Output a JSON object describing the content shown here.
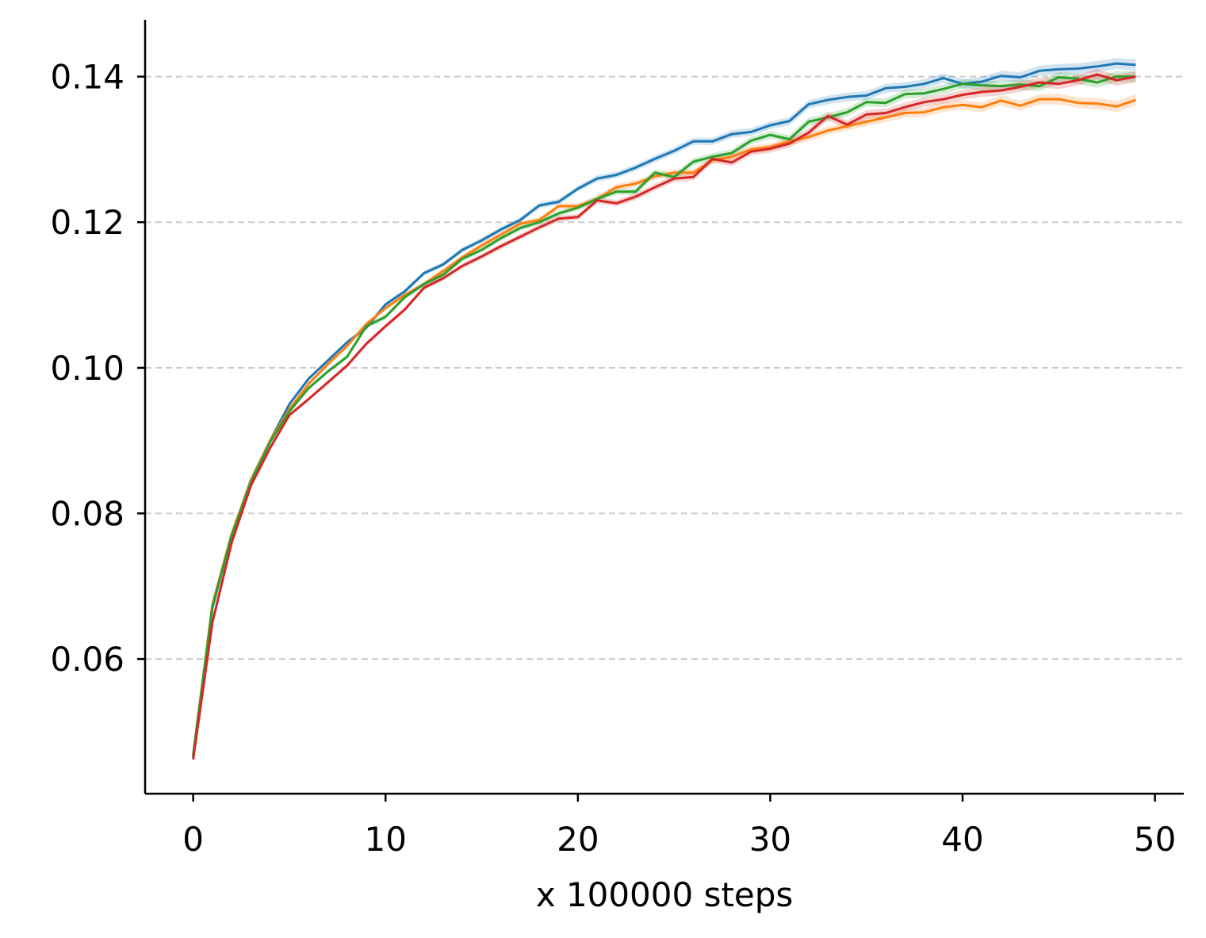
{
  "chart_data": {
    "type": "line",
    "title": "",
    "xlabel": "x 100000 steps",
    "ylabel": "",
    "xlim": [
      -2.5,
      51.5
    ],
    "ylim": [
      0.0415,
      0.1478
    ],
    "xticks": [
      0,
      10,
      20,
      30,
      40,
      50
    ],
    "xtick_labels": [
      "0",
      "10",
      "20",
      "30",
      "40",
      "50"
    ],
    "yticks": [
      0.06,
      0.08,
      0.1,
      0.12,
      0.14
    ],
    "ytick_labels": [
      "0.06",
      "0.08",
      "0.10",
      "0.12",
      "0.14"
    ],
    "grid": "horizontal-dashed",
    "legend": "none",
    "x": [
      0,
      1,
      2,
      3,
      4,
      5,
      6,
      7,
      8,
      9,
      10,
      11,
      12,
      13,
      14,
      15,
      16,
      17,
      18,
      19,
      20,
      21,
      22,
      23,
      24,
      25,
      26,
      27,
      28,
      29,
      30,
      31,
      32,
      33,
      34,
      35,
      36,
      37,
      38,
      39,
      40,
      41,
      42,
      43,
      44,
      45,
      46,
      47,
      48,
      49
    ],
    "band_width": 0.0006,
    "series": [
      {
        "color": "#1f77b4",
        "values": [
          0.0466,
          0.067,
          0.077,
          0.0846,
          0.09,
          0.095,
          0.0985,
          0.101,
          0.1035,
          0.1055,
          0.1087,
          0.1105,
          0.113,
          0.1142,
          0.1162,
          0.1175,
          0.119,
          0.1203,
          0.1223,
          0.1228,
          0.1246,
          0.126,
          0.1265,
          0.1275,
          0.1287,
          0.1298,
          0.1311,
          0.1311,
          0.1321,
          0.1324,
          0.1333,
          0.1339,
          0.1362,
          0.1368,
          0.1372,
          0.1374,
          0.1384,
          0.1386,
          0.139,
          0.1398,
          0.139,
          0.1393,
          0.1401,
          0.1399,
          0.1408,
          0.141,
          0.1411,
          0.1414,
          0.1418,
          0.1416
        ]
      },
      {
        "color": "#ff7f0e",
        "values": [
          0.0468,
          0.0675,
          0.0772,
          0.0845,
          0.09,
          0.0943,
          0.0978,
          0.1005,
          0.103,
          0.106,
          0.1082,
          0.11,
          0.1115,
          0.1133,
          0.1152,
          0.1168,
          0.1183,
          0.1198,
          0.1203,
          0.1222,
          0.1222,
          0.1232,
          0.1248,
          0.1253,
          0.1263,
          0.1268,
          0.1268,
          0.1285,
          0.129,
          0.13,
          0.1303,
          0.1311,
          0.1317,
          0.1326,
          0.1332,
          0.1338,
          0.1344,
          0.135,
          0.1351,
          0.1358,
          0.1361,
          0.1358,
          0.1367,
          0.136,
          0.1369,
          0.1369,
          0.1364,
          0.1363,
          0.1359,
          0.1368
        ]
      },
      {
        "color": "#2ca02c",
        "values": [
          0.0468,
          0.0672,
          0.077,
          0.0843,
          0.0898,
          0.094,
          0.0972,
          0.0995,
          0.1015,
          0.1057,
          0.107,
          0.1097,
          0.1115,
          0.1128,
          0.115,
          0.1162,
          0.1178,
          0.1192,
          0.12,
          0.1212,
          0.122,
          0.1232,
          0.1242,
          0.1242,
          0.1268,
          0.1262,
          0.1283,
          0.129,
          0.1295,
          0.1312,
          0.132,
          0.1314,
          0.1338,
          0.1344,
          0.1351,
          0.1365,
          0.1364,
          0.1376,
          0.1377,
          0.1383,
          0.139,
          0.1388,
          0.1387,
          0.1389,
          0.1387,
          0.1399,
          0.1397,
          0.1392,
          0.14,
          0.14
        ]
      },
      {
        "color": "#d62728",
        "values": [
          0.0462,
          0.065,
          0.076,
          0.0838,
          0.089,
          0.0935,
          0.0957,
          0.098,
          0.1003,
          0.1033,
          0.1057,
          0.108,
          0.111,
          0.1123,
          0.114,
          0.1153,
          0.1167,
          0.118,
          0.1193,
          0.1205,
          0.1207,
          0.123,
          0.1226,
          0.1235,
          0.1248,
          0.126,
          0.1262,
          0.1287,
          0.1282,
          0.1297,
          0.1301,
          0.1308,
          0.1323,
          0.1346,
          0.1334,
          0.1348,
          0.135,
          0.1358,
          0.1365,
          0.1369,
          0.1375,
          0.1379,
          0.1381,
          0.1386,
          0.1392,
          0.139,
          0.1395,
          0.1403,
          0.1395,
          0.14
        ]
      }
    ]
  }
}
